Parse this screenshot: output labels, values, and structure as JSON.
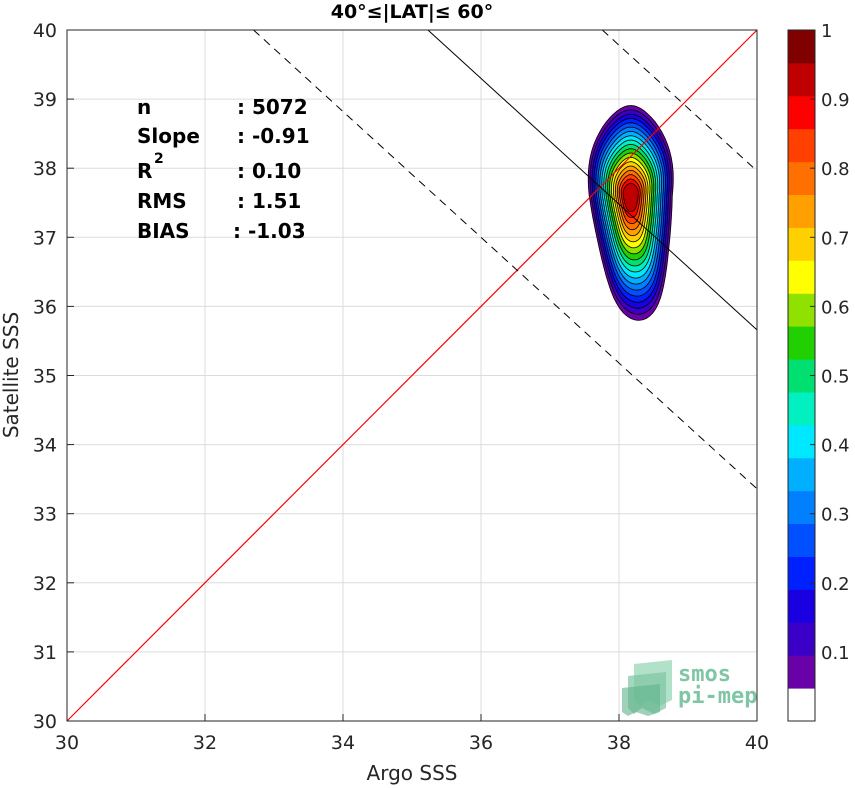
{
  "chart_data": {
    "type": "contour-scatter",
    "title": "40°≤|LAT|≤ 60°",
    "xlabel": "Argo SSS",
    "ylabel": "Satellite SSS",
    "xlim": [
      30,
      40
    ],
    "ylim": [
      30,
      40
    ],
    "xticks": [
      30,
      32,
      34,
      36,
      38,
      40
    ],
    "yticks": [
      30,
      31,
      32,
      33,
      34,
      35,
      36,
      37,
      38,
      39,
      40
    ],
    "grid": true,
    "stats": [
      {
        "label": "n",
        "value": ": 5072"
      },
      {
        "label": "Slope",
        "value": ": -0.91"
      },
      {
        "label": "R",
        "value": ": 0.10"
      },
      {
        "label": "RMS",
        "value": ": 1.51"
      },
      {
        "label": "BIAS",
        "value": ": -1.03"
      }
    ],
    "stats_superscript": "2",
    "one_to_one_line": {
      "color": "#ff0000"
    },
    "regression": {
      "slope": -0.91,
      "intercept": 72.06
    },
    "envelope_offset": 2.3,
    "density_center": {
      "x": 38.17,
      "y": 37.6
    },
    "density_levels": [
      0.05,
      0.1,
      0.15,
      0.2,
      0.25,
      0.3,
      0.35,
      0.4,
      0.45,
      0.5,
      0.55,
      0.6,
      0.65,
      0.7,
      0.75,
      0.8,
      0.85,
      0.9,
      0.95
    ],
    "colorbar": {
      "ticks": [
        "1",
        "0.9",
        "0.8",
        "0.7",
        "0.6",
        "0.5",
        "0.4",
        "0.3",
        "0.2",
        "0.1"
      ],
      "tick_values": [
        1,
        0.9,
        0.8,
        0.7,
        0.6,
        0.5,
        0.4,
        0.3,
        0.2,
        0.1
      ],
      "colors": [
        "#ffffff",
        "#6a00a8",
        "#3a00c8",
        "#1a00e0",
        "#0020ff",
        "#0050ff",
        "#0080ff",
        "#00b0ff",
        "#00e8ff",
        "#00f0c0",
        "#00e070",
        "#20d000",
        "#90e000",
        "#ffff00",
        "#ffd000",
        "#ffa000",
        "#ff7000",
        "#ff4000",
        "#ff0000",
        "#c00000",
        "#800000"
      ]
    },
    "logo": {
      "line1": "smos",
      "line2": "pi-mep"
    }
  }
}
